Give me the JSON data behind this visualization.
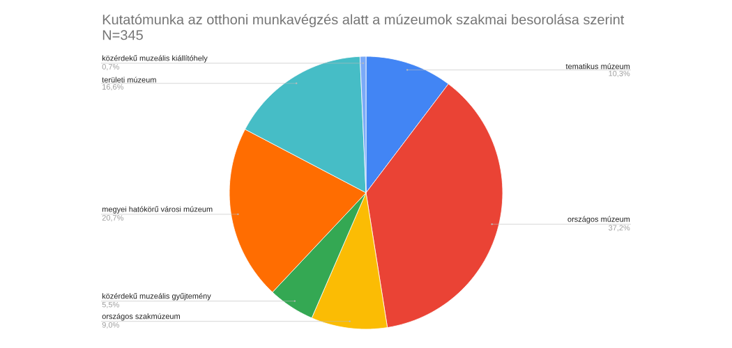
{
  "chart_data": {
    "type": "pie",
    "title": "Kutatómunka az otthoni munkavégzés alatt a múzeumok szakmai besorolása szerint",
    "subtitle": "N=345",
    "categories": [
      "tematikus múzeum",
      "országos múzeum",
      "országos szakmúzeum",
      "közérdekű muzeális gyűjtemény",
      "megyei hatókörű városi múzeum",
      "területi múzeum",
      "közérdekű muzeális kiállítóhely"
    ],
    "values": [
      10.3,
      37.2,
      9.0,
      5.5,
      20.7,
      16.6,
      0.7
    ],
    "value_labels": [
      "10,3%",
      "37,2%",
      "9,0%",
      "5,5%",
      "20,7%",
      "16,6%",
      "0,7%"
    ],
    "colors": [
      "#4285f4",
      "#ea4335",
      "#fbbc04",
      "#34a853",
      "#ff6d01",
      "#46bdc6",
      "#7baaf7"
    ]
  }
}
